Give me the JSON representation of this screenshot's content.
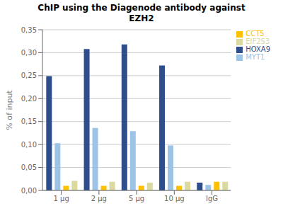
{
  "chart_data": {
    "type": "bar",
    "title": "ChIP using the Diagenode antibody against\nEZH2",
    "ylabel": "% of input",
    "categories": [
      "1 μg",
      "2 μg",
      "5 μg",
      "10 μg",
      "IgG"
    ],
    "series": [
      {
        "name": "HOXA9",
        "color": "#2E4D8C",
        "values": [
          0.249,
          0.308,
          0.318,
          0.272,
          0.017
        ]
      },
      {
        "name": "MYT1",
        "color": "#9DC3E6",
        "values": [
          0.103,
          0.136,
          0.129,
          0.098,
          0.012
        ]
      },
      {
        "name": "CCT5",
        "color": "#FFC000",
        "values": [
          0.01,
          0.01,
          0.01,
          0.01,
          0.019
        ]
      },
      {
        "name": "EIF2S3",
        "color": "#D9D9A0",
        "values": [
          0.021,
          0.019,
          0.017,
          0.019,
          0.019
        ]
      }
    ],
    "ylim": [
      0,
      0.35
    ],
    "yticks": [
      {
        "value": 0.0,
        "label": "0,00"
      },
      {
        "value": 0.05,
        "label": "0,05"
      },
      {
        "value": 0.1,
        "label": "0,10"
      },
      {
        "value": 0.15,
        "label": "0,15"
      },
      {
        "value": 0.2,
        "label": "0,20"
      },
      {
        "value": 0.25,
        "label": "0,25"
      },
      {
        "value": 0.3,
        "label": "0,30"
      },
      {
        "value": 0.35,
        "label": "0,35"
      }
    ],
    "grid": true,
    "legend": "upper right"
  }
}
